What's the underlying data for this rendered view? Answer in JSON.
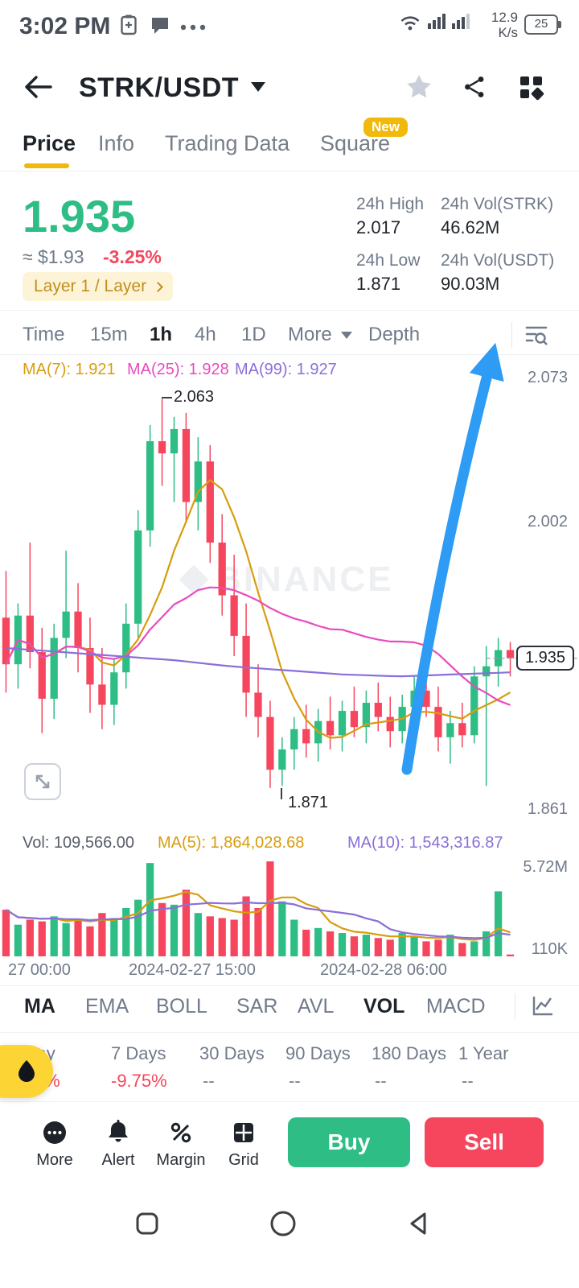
{
  "colors": {
    "up": "#2EBD85",
    "down": "#F6465D",
    "accent": "#F0B90B",
    "ma7": "#D89C0E",
    "ma25": "#E94BBE",
    "ma99": "#8A6FD8",
    "arrow": "#2E9BF5",
    "negative": "#F6465D"
  },
  "status_bar": {
    "time": "3:02 PM",
    "net_speed": "12.9",
    "net_speed_unit": "K/s",
    "battery_level": "25"
  },
  "header": {
    "title": "STRK/USDT"
  },
  "tabs": [
    {
      "label": "Price"
    },
    {
      "label": "Info"
    },
    {
      "label": "Trading Data"
    },
    {
      "label": "Square",
      "badge": "New"
    }
  ],
  "price": {
    "last": "1.935",
    "approx": "≈ $1.93",
    "change": "-3.25%",
    "tag": "Layer 1 / Layer"
  },
  "stats": [
    {
      "label": "24h High",
      "value": "2.017"
    },
    {
      "label": "24h Vol(STRK)",
      "value": "46.62M"
    },
    {
      "label": "24h Low",
      "value": "1.871"
    },
    {
      "label": "24h Vol(USDT)",
      "value": "90.03M"
    }
  ],
  "timeframe_bar": {
    "items": [
      "Time",
      "15m",
      "1h",
      "4h",
      "1D"
    ],
    "active": "1h",
    "more": "More",
    "depth": "Depth"
  },
  "ma_legend": [
    "MA(7): 1.921",
    "MA(25): 1.928",
    "MA(99): 1.927"
  ],
  "vol_legend": [
    "Vol: 109,566.00",
    "MA(5): 1,864,028.68",
    "MA(10): 1,543,316.87"
  ],
  "price_axis": {
    "top": "2.073",
    "mid": "2.002",
    "current": "1.935",
    "bottom": "1.861"
  },
  "vol_axis": {
    "top": "5.72M",
    "bottom": "110K"
  },
  "watermark": "BINANCE",
  "indicator_bar": {
    "items": [
      "MA",
      "EMA",
      "BOLL",
      "SAR",
      "AVL",
      "VOL",
      "MACD"
    ],
    "active_main": "MA",
    "active_sub": "VOL"
  },
  "periods": [
    {
      "label": "Today",
      "value": "-3.24%"
    },
    {
      "label": "7 Days",
      "value": "-9.75%"
    },
    {
      "label": "30 Days",
      "value": "--"
    },
    {
      "label": "90 Days",
      "value": "--"
    },
    {
      "label": "180 Days",
      "value": "--"
    },
    {
      "label": "1 Year",
      "value": "--"
    }
  ],
  "bottom_bar": {
    "items": [
      {
        "label": "More"
      },
      {
        "label": "Alert"
      },
      {
        "label": "Margin"
      },
      {
        "label": "Grid"
      }
    ],
    "buy": "Buy",
    "sell": "Sell"
  },
  "chart_data": {
    "type": "candlestick",
    "symbol": "STRK/USDT",
    "interval": "1h",
    "price_range": [
      1.861,
      2.073
    ],
    "current_price": 1.935,
    "annotations": {
      "high": "2.063",
      "low": "1.871"
    },
    "x_ticks": [
      "27 00:00",
      "2024-02-27 15:00",
      "2024-02-28 06:00"
    ],
    "volume_axis_max_m": 5.8,
    "ma99_control": [
      1.94,
      1.938,
      1.936,
      1.934,
      1.931,
      1.929,
      1.927,
      1.926,
      1.927,
      1.928
    ],
    "candles": [
      [
        1.955,
        1.978,
        1.918,
        1.932
      ],
      [
        1.932,
        1.962,
        1.92,
        1.956
      ],
      [
        1.956,
        1.992,
        1.93,
        1.938
      ],
      [
        1.938,
        1.95,
        1.898,
        1.915
      ],
      [
        1.915,
        1.952,
        1.905,
        1.945
      ],
      [
        1.945,
        1.988,
        1.935,
        1.958
      ],
      [
        1.958,
        1.972,
        1.928,
        1.94
      ],
      [
        1.94,
        1.955,
        1.908,
        1.922
      ],
      [
        1.922,
        1.94,
        1.9,
        1.912
      ],
      [
        1.912,
        1.935,
        1.902,
        1.928
      ],
      [
        1.928,
        1.962,
        1.92,
        1.952
      ],
      [
        1.952,
        2.008,
        1.945,
        1.998
      ],
      [
        1.998,
        2.05,
        1.99,
        2.042
      ],
      [
        2.042,
        2.063,
        2.02,
        2.036
      ],
      [
        2.036,
        2.054,
        2.012,
        2.048
      ],
      [
        2.048,
        2.056,
        2.002,
        2.012
      ],
      [
        2.012,
        2.044,
        1.998,
        2.032
      ],
      [
        2.032,
        2.04,
        1.982,
        1.992
      ],
      [
        1.992,
        2.006,
        1.956,
        1.966
      ],
      [
        1.966,
        1.986,
        1.936,
        1.946
      ],
      [
        1.946,
        1.962,
        1.906,
        1.918
      ],
      [
        1.918,
        1.932,
        1.896,
        1.906
      ],
      [
        1.906,
        1.914,
        1.871,
        1.88
      ],
      [
        1.88,
        1.896,
        1.872,
        1.89
      ],
      [
        1.89,
        1.906,
        1.88,
        1.9
      ],
      [
        1.9,
        1.912,
        1.886,
        1.893
      ],
      [
        1.893,
        1.91,
        1.884,
        1.904
      ],
      [
        1.904,
        1.916,
        1.89,
        1.897
      ],
      [
        1.897,
        1.914,
        1.889,
        1.909
      ],
      [
        1.909,
        1.921,
        1.896,
        1.901
      ],
      [
        1.901,
        1.919,
        1.893,
        1.913
      ],
      [
        1.913,
        1.923,
        1.899,
        1.906
      ],
      [
        1.906,
        1.916,
        1.891,
        1.899
      ],
      [
        1.899,
        1.917,
        1.893,
        1.911
      ],
      [
        1.911,
        1.926,
        1.901,
        1.919
      ],
      [
        1.919,
        1.929,
        1.906,
        1.911
      ],
      [
        1.911,
        1.921,
        1.889,
        1.896
      ],
      [
        1.896,
        1.909,
        1.883,
        1.903
      ],
      [
        1.903,
        1.913,
        1.891,
        1.897
      ],
      [
        1.897,
        1.931,
        1.893,
        1.926
      ],
      [
        1.926,
        1.941,
        1.872,
        1.931
      ],
      [
        1.931,
        1.945,
        1.921,
        1.939
      ],
      [
        1.939,
        1.943,
        1.926,
        1.935
      ]
    ],
    "volumes_m": [
      2.8,
      1.9,
      2.2,
      2.1,
      2.4,
      2.0,
      2.2,
      1.8,
      2.6,
      2.3,
      2.9,
      3.4,
      5.6,
      3.2,
      3.1,
      4.0,
      2.6,
      2.4,
      2.3,
      2.2,
      3.6,
      2.9,
      5.7,
      3.3,
      2.2,
      1.6,
      1.7,
      1.5,
      1.4,
      1.2,
      1.3,
      1.1,
      1.0,
      1.4,
      1.2,
      0.9,
      1.0,
      1.3,
      0.8,
      0.9,
      1.5,
      3.9,
      0.11
    ]
  }
}
